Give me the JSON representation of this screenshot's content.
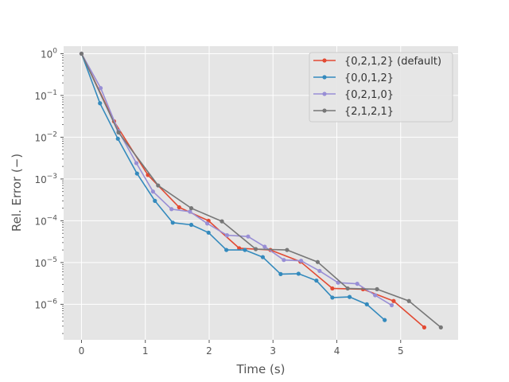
{
  "chart_data": {
    "type": "line",
    "title": "",
    "xlabel": "Time (s)",
    "ylabel": "Rel. Error (−)",
    "xlim": [
      -0.28,
      5.9
    ],
    "ylim_log10": [
      -6.85,
      0.18
    ],
    "y_scale": "log",
    "grid": true,
    "legend_position": "top-right",
    "x_ticks": [
      0,
      1,
      2,
      3,
      4,
      5
    ],
    "x_tick_labels": [
      "0",
      "1",
      "2",
      "3",
      "4",
      "5"
    ],
    "y_ticks_log10": [
      0,
      -1,
      -2,
      -3,
      -4,
      -5,
      -6
    ],
    "y_tick_labels": [
      {
        "base": "10",
        "exp": "0"
      },
      {
        "base": "10",
        "exp": "−1"
      },
      {
        "base": "10",
        "exp": "−2"
      },
      {
        "base": "10",
        "exp": "−3"
      },
      {
        "base": "10",
        "exp": "−4"
      },
      {
        "base": "10",
        "exp": "−5"
      },
      {
        "base": "10",
        "exp": "−6"
      }
    ],
    "series": [
      {
        "name": "{0,2,1,2} (default)",
        "color": "#E24A33",
        "points": [
          [
            0,
            1.0
          ],
          [
            0.51,
            0.024
          ],
          [
            1.04,
            0.00125
          ],
          [
            1.53,
            0.00021
          ],
          [
            1.99,
            0.0001
          ],
          [
            2.47,
            2.2e-05
          ],
          [
            2.96,
            2e-05
          ],
          [
            3.43,
            1.05e-05
          ],
          [
            3.93,
            2.4e-06
          ],
          [
            4.41,
            2.3e-06
          ],
          [
            4.89,
            1.2e-06
          ],
          [
            5.37,
            2.8e-07
          ]
        ]
      },
      {
        "name": "{0,0,1,2}",
        "color": "#348ABD",
        "points": [
          [
            0,
            1.0
          ],
          [
            0.29,
            0.065
          ],
          [
            0.57,
            0.0092
          ],
          [
            0.87,
            0.00135
          ],
          [
            1.15,
            0.0003
          ],
          [
            1.43,
            9e-05
          ],
          [
            1.72,
            8e-05
          ],
          [
            1.99,
            5.2e-05
          ],
          [
            2.27,
            2e-05
          ],
          [
            2.56,
            2e-05
          ],
          [
            2.84,
            1.35e-05
          ],
          [
            3.12,
            5.3e-06
          ],
          [
            3.4,
            5.4e-06
          ],
          [
            3.68,
            3.7e-06
          ],
          [
            3.93,
            1.45e-06
          ],
          [
            4.2,
            1.5e-06
          ],
          [
            4.47,
            1e-06
          ],
          [
            4.75,
            4.2e-07
          ]
        ]
      },
      {
        "name": "{0,2,1,0}",
        "color": "#988ED5",
        "points": [
          [
            0,
            1.0
          ],
          [
            0.3,
            0.15
          ],
          [
            0.58,
            0.014
          ],
          [
            0.86,
            0.0024
          ],
          [
            1.12,
            0.0005
          ],
          [
            1.41,
            0.00019
          ],
          [
            1.7,
            0.000165
          ],
          [
            1.97,
            8.6e-05
          ],
          [
            2.28,
            4.5e-05
          ],
          [
            2.61,
            4.2e-05
          ],
          [
            2.87,
            2.4e-05
          ],
          [
            3.17,
            1.15e-05
          ],
          [
            3.44,
            1.1e-05
          ],
          [
            3.73,
            6.3e-06
          ],
          [
            4.02,
            3.3e-06
          ],
          [
            4.32,
            3.1e-06
          ],
          [
            4.6,
            1.65e-06
          ],
          [
            4.86,
            9.5e-07
          ]
        ]
      },
      {
        "name": "{2,1,2,1}",
        "color": "#777777",
        "points": [
          [
            0,
            1.0
          ],
          [
            0.58,
            0.013
          ],
          [
            1.2,
            0.0007
          ],
          [
            1.72,
            0.0002
          ],
          [
            2.2,
            9.7e-05
          ],
          [
            2.73,
            2.1e-05
          ],
          [
            3.22,
            2e-05
          ],
          [
            3.7,
            1.03e-05
          ],
          [
            4.17,
            2.4e-06
          ],
          [
            4.63,
            2.3e-06
          ],
          [
            5.13,
            1.2e-06
          ],
          [
            5.63,
            2.8e-07
          ]
        ]
      }
    ]
  }
}
